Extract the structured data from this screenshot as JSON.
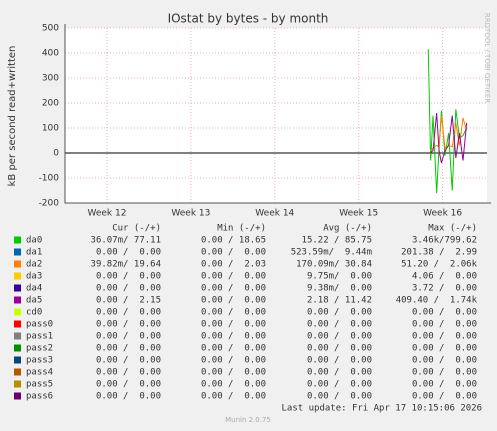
{
  "chart_data": {
    "type": "line",
    "title": "IOstat by bytes - by month",
    "y_label": "kB per second read+written",
    "side_note": "RRDTOOL / TOBI OETIKER",
    "xlim": [
      0,
      35.2
    ],
    "xticks": [
      {
        "value": 3.5,
        "label": "Week 12"
      },
      {
        "value": 10.5,
        "label": "Week 13"
      },
      {
        "value": 17.5,
        "label": "Week 14"
      },
      {
        "value": 24.5,
        "label": "Week 15"
      },
      {
        "value": 31.5,
        "label": "Week 16"
      }
    ],
    "ylim": [
      -200,
      500
    ],
    "yticks": [
      -200,
      -100,
      0,
      100,
      200,
      300,
      400,
      500
    ],
    "grid": true,
    "x": [
      30.3,
      30.5,
      30.7,
      31.0,
      31.2,
      31.4,
      31.7,
      32.0,
      32.3,
      32.6,
      32.9,
      33.2,
      33.5
    ],
    "legend_headers": [
      "Cur (-/+)",
      "Min (-/+)",
      "Avg (-/+)",
      "Max (-/+)"
    ],
    "series": [
      {
        "name": "da0",
        "color": "#00cc00",
        "values": [
          415,
          -30,
          150,
          -160,
          20,
          170,
          -10,
          80,
          -150,
          175,
          60,
          70,
          100
        ],
        "cur": "36.07m/ 77.11",
        "min": "0.00 / 18.65",
        "avg": "15.22 / 85.75",
        "max": "3.46k/799.62"
      },
      {
        "name": "da1",
        "color": "#0066b3",
        "cur": "0.00 /  0.00",
        "min": "0.00 /  0.00",
        "avg": "523.59m/  9.44m",
        "max": "201.38 /  2.99"
      },
      {
        "name": "da2",
        "color": "#ff8000",
        "values": [
          null,
          10,
          20,
          30,
          25,
          150,
          20,
          30,
          25,
          120,
          30,
          140,
          90
        ],
        "cur": "39.82m/ 19.64",
        "min": "0.00 /  2.03",
        "avg": "170.09m/ 30.84",
        "max": "51.20 /  2.06k"
      },
      {
        "name": "da3",
        "color": "#ffcc00",
        "cur": "0.00 /  0.00",
        "min": "0.00 /  0.00",
        "avg": "9.75m/  0.00",
        "max": "4.06 /  0.00"
      },
      {
        "name": "da4",
        "color": "#330099",
        "cur": "0.00 /  0.00",
        "min": "0.00 /  0.00",
        "avg": "9.38m/  0.00",
        "max": "3.72 /  0.00"
      },
      {
        "name": "da5",
        "color": "#990099",
        "values": [
          null,
          0,
          10,
          160,
          10,
          -40,
          10,
          30,
          150,
          -20,
          80,
          -30,
          120
        ],
        "cur": "0.00 /  2.15",
        "min": "0.00 /  0.00",
        "avg": "2.18 / 11.42",
        "max": "409.40 /  1.74k"
      },
      {
        "name": "cd0",
        "color": "#ccff00",
        "cur": "0.00 /  0.00",
        "min": "0.00 /  0.00",
        "avg": "0.00 /  0.00",
        "max": "0.00 /  0.00"
      },
      {
        "name": "pass0",
        "color": "#ff0000",
        "cur": "0.00 /  0.00",
        "min": "0.00 /  0.00",
        "avg": "0.00 /  0.00",
        "max": "0.00 /  0.00"
      },
      {
        "name": "pass1",
        "color": "#808080",
        "cur": "0.00 /  0.00",
        "min": "0.00 /  0.00",
        "avg": "0.00 /  0.00",
        "max": "0.00 /  0.00"
      },
      {
        "name": "pass2",
        "color": "#008f00",
        "cur": "0.00 /  0.00",
        "min": "0.00 /  0.00",
        "avg": "0.00 /  0.00",
        "max": "0.00 /  0.00"
      },
      {
        "name": "pass3",
        "color": "#00487d",
        "cur": "0.00 /  0.00",
        "min": "0.00 /  0.00",
        "avg": "0.00 /  0.00",
        "max": "0.00 /  0.00"
      },
      {
        "name": "pass4",
        "color": "#b35a00",
        "cur": "0.00 /  0.00",
        "min": "0.00 /  0.00",
        "avg": "0.00 /  0.00",
        "max": "0.00 /  0.00"
      },
      {
        "name": "pass5",
        "color": "#b38f00",
        "cur": "0.00 /  0.00",
        "min": "0.00 /  0.00",
        "avg": "0.00 /  0.00",
        "max": "0.00 /  0.00"
      },
      {
        "name": "pass6",
        "color": "#6b006b",
        "cur": "0.00 /  0.00",
        "min": "0.00 /  0.00",
        "avg": "0.00 /  0.00",
        "max": "0.00 /  0.00"
      }
    ],
    "last_update": "Last update: Fri Apr 17 10:15:06 2026",
    "footer": "Munin 2.0.75"
  }
}
